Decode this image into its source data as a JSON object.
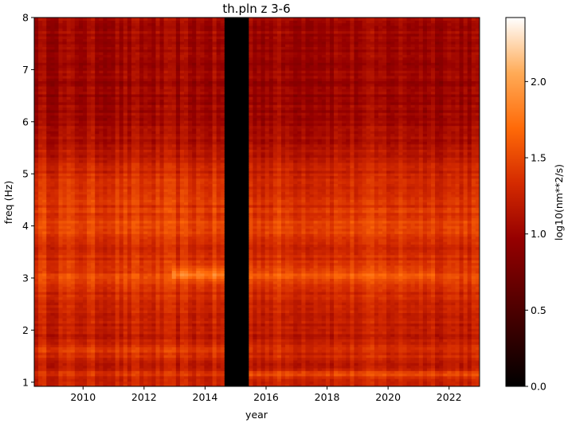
{
  "chart_data": {
    "type": "heatmap",
    "title": "th.pln z 3-6",
    "xlabel": "year",
    "ylabel": "freq (Hz)",
    "colorbar_label": "log10(nm**2/s)",
    "colormap": "gist_heat",
    "xlim": [
      2008.4,
      2023.0
    ],
    "ylim": [
      0.92,
      8.0
    ],
    "clim": [
      0.0,
      2.42
    ],
    "x_ticks": [
      2010,
      2012,
      2014,
      2016,
      2018,
      2020,
      2022
    ],
    "x_tick_labels": [
      "2010",
      "2012",
      "2014",
      "2016",
      "2018",
      "2020",
      "2022"
    ],
    "y_ticks": [
      1,
      2,
      3,
      4,
      5,
      6,
      7,
      8
    ],
    "y_tick_labels": [
      "1",
      "2",
      "3",
      "4",
      "5",
      "6",
      "7",
      "8"
    ],
    "colorbar_ticks": [
      0.0,
      0.5,
      1.0,
      1.5,
      2.0
    ],
    "colorbar_tick_labels": [
      "0.0",
      "0.5",
      "1.0",
      "1.5",
      "2.0"
    ],
    "data_gap": {
      "x_start": 2014.6,
      "x_end": 2015.4,
      "value": 0.0
    },
    "frequency_profile": {
      "freq": [
        0.92,
        1.0,
        1.15,
        1.3,
        1.45,
        1.6,
        1.8,
        2.0,
        2.2,
        2.5,
        2.8,
        3.0,
        3.2,
        3.5,
        3.8,
        4.0,
        4.3,
        4.6,
        5.0,
        5.3,
        5.6,
        6.0,
        6.5,
        7.0,
        7.5,
        8.0
      ],
      "value": [
        1.2,
        1.25,
        1.35,
        1.2,
        1.3,
        1.35,
        1.25,
        1.2,
        1.25,
        1.25,
        1.35,
        1.5,
        1.45,
        1.3,
        1.45,
        1.5,
        1.4,
        1.35,
        1.3,
        1.2,
        1.1,
        1.05,
        1.0,
        1.02,
        1.02,
        1.05
      ]
    },
    "features": [
      {
        "x_start": 2012.9,
        "x_end": 2014.6,
        "freq_center": 3.1,
        "freq_width": 0.12,
        "delta": 0.3
      },
      {
        "x_start": 2015.4,
        "x_end": 2021.5,
        "freq_center": 3.1,
        "freq_width": 0.12,
        "delta": 0.12
      },
      {
        "x_start": 2015.4,
        "x_end": 2023.0,
        "freq_center": 1.15,
        "freq_width": 0.08,
        "delta": 0.15
      },
      {
        "x_start": 2008.4,
        "x_end": 2014.6,
        "freq_center": 1.6,
        "freq_width": 0.06,
        "delta": 0.1
      },
      {
        "x_start": 2008.4,
        "x_end": 2014.6,
        "freq_center": 4.7,
        "freq_width": 0.35,
        "delta": 0.06
      }
    ]
  }
}
